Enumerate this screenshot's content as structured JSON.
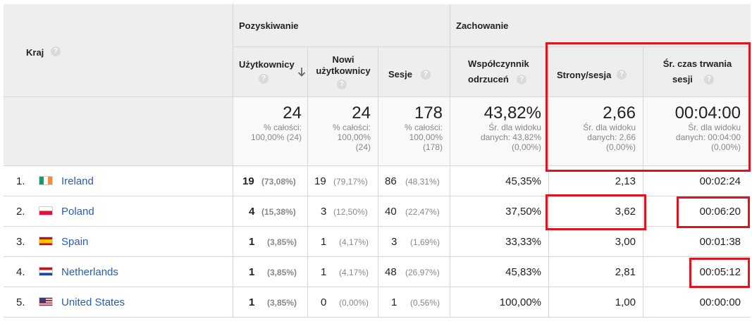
{
  "header": {
    "kraj_label": "Kraj",
    "group_pozyskiwanie": "Pozyskiwanie",
    "group_zachowanie": "Zachowanie",
    "columns": [
      {
        "line1": "Użytkownicy",
        "line2": ""
      },
      {
        "line1": "Nowi",
        "line2": "użytkownicy"
      },
      {
        "line1": "Sesje",
        "line2": ""
      },
      {
        "line1": "Współczynnik",
        "line2": "odrzuceń"
      },
      {
        "line1": "Strony/sesja",
        "line2": ""
      },
      {
        "line1": "Śr. czas trwania",
        "line2": "sesji"
      }
    ],
    "help_glyph": "?",
    "sort_icon": "arrow-down-icon"
  },
  "totals": [
    {
      "value": "24",
      "sub1": "% całości:",
      "sub2": "100,00% (24)",
      "sub3": ""
    },
    {
      "value": "24",
      "sub1": "% całości:",
      "sub2": "100,00%",
      "sub3": "(24)"
    },
    {
      "value": "178",
      "sub1": "% całości:",
      "sub2": "100,00%",
      "sub3": "(178)"
    },
    {
      "value": "43,82%",
      "sub1": "Śr. dla widoku",
      "sub2": "danych: 43,82%",
      "sub3": "(0,00%)"
    },
    {
      "value": "2,66",
      "sub1": "Śr. dla widoku",
      "sub2": "danych: 2,66",
      "sub3": "(0,00%)"
    },
    {
      "value": "00:04:00",
      "sub1": "Śr. dla widoku",
      "sub2": "danych: 00:04:00",
      "sub3": "(0,00%)"
    }
  ],
  "rows": [
    {
      "index": "1.",
      "flag": "ireland-flag",
      "country": "Ireland",
      "users": "19",
      "users_pct": "(73,08%)",
      "new_users": "19",
      "new_users_pct": "(79,17%)",
      "sessions": "86",
      "sessions_pct": "(48,31%)",
      "bounce": "45,35%",
      "pages": "2,13",
      "duration": "00:02:24"
    },
    {
      "index": "2.",
      "flag": "poland-flag",
      "country": "Poland",
      "users": "4",
      "users_pct": "(15,38%)",
      "new_users": "3",
      "new_users_pct": "(12,50%)",
      "sessions": "40",
      "sessions_pct": "(22,47%)",
      "bounce": "37,50%",
      "pages": "3,62",
      "duration": "00:06:20"
    },
    {
      "index": "3.",
      "flag": "spain-flag",
      "country": "Spain",
      "users": "1",
      "users_pct": "(3,85%)",
      "new_users": "1",
      "new_users_pct": "(4,17%)",
      "sessions": "3",
      "sessions_pct": "(1,69%)",
      "bounce": "33,33%",
      "pages": "3,00",
      "duration": "00:01:38"
    },
    {
      "index": "4.",
      "flag": "netherlands-flag",
      "country": "Netherlands",
      "users": "1",
      "users_pct": "(3,85%)",
      "new_users": "1",
      "new_users_pct": "(4,17%)",
      "sessions": "48",
      "sessions_pct": "(26,97%)",
      "bounce": "45,83%",
      "pages": "2,81",
      "duration": "00:05:12"
    },
    {
      "index": "5.",
      "flag": "usa-flag",
      "country": "United States",
      "users": "1",
      "users_pct": "(3,85%)",
      "new_users": "0",
      "new_users_pct": "(0,00%)",
      "sessions": "1",
      "sessions_pct": "(0,56%)",
      "bounce": "100,00%",
      "pages": "1,00",
      "duration": "00:00:00"
    }
  ],
  "colors": {
    "header_bg": "#eeeeee",
    "link": "#2a5db0",
    "highlight": "#e0141e",
    "muted": "#888888"
  }
}
